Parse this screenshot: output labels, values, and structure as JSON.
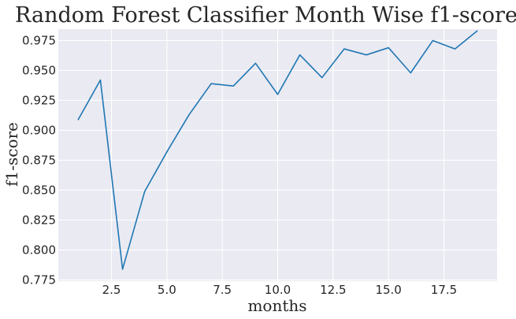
{
  "chart_data": {
    "type": "line",
    "title": "Random Forest Classifier Month Wise f1-score",
    "xlabel": "months",
    "ylabel": "f1-score",
    "xlim": [
      0.1,
      19.9
    ],
    "ylim": [
      0.774,
      0.9845
    ],
    "x_ticks": [
      2.5,
      5.0,
      7.5,
      10.0,
      12.5,
      15.0,
      17.5
    ],
    "x_tick_labels": [
      "2.5",
      "5.0",
      "7.5",
      "10.0",
      "12.5",
      "15.0",
      "17.5"
    ],
    "y_ticks": [
      0.775,
      0.8,
      0.825,
      0.85,
      0.875,
      0.9,
      0.925,
      0.95,
      0.975
    ],
    "y_tick_labels": [
      "0.775",
      "0.800",
      "0.825",
      "0.850",
      "0.875",
      "0.900",
      "0.925",
      "0.950",
      "0.975"
    ],
    "grid": true,
    "colors": {
      "line": "#1f77b4",
      "background": "#eaeaf2",
      "grid": "#ffffff"
    },
    "series": [
      {
        "x": [
          1,
          2,
          3,
          4,
          5,
          6,
          7,
          8,
          9,
          10,
          11,
          12,
          13,
          14,
          15,
          16,
          17,
          18,
          19
        ],
        "values": [
          0.909,
          0.942,
          0.784,
          0.849,
          0.882,
          0.913,
          0.939,
          0.937,
          0.956,
          0.93,
          0.963,
          0.944,
          0.968,
          0.963,
          0.969,
          0.948,
          0.975,
          0.968,
          0.983
        ]
      }
    ]
  }
}
